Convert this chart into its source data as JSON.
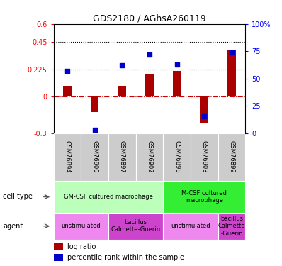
{
  "title": "GDS2180 / AGhsA260119",
  "samples": [
    "GSM76894",
    "GSM76900",
    "GSM76897",
    "GSM76902",
    "GSM76898",
    "GSM76903",
    "GSM76899"
  ],
  "log_ratio": [
    0.09,
    -0.13,
    0.09,
    0.19,
    0.21,
    -0.22,
    0.38
  ],
  "percentile_rank": [
    57,
    3,
    62,
    72,
    63,
    15,
    74
  ],
  "ylim_left": [
    -0.3,
    0.6
  ],
  "ylim_right": [
    0,
    100
  ],
  "yticks_left": [
    -0.3,
    0,
    0.225,
    0.45,
    0.6
  ],
  "ytick_labels_left": [
    "-0.3",
    "0",
    "0.225",
    "0.45",
    "0.6"
  ],
  "yticks_right": [
    0,
    25,
    50,
    75,
    100
  ],
  "ytick_labels_right": [
    "0",
    "25",
    "50",
    "75",
    "100%"
  ],
  "hlines": [
    0.225,
    0.45
  ],
  "bar_color": "#aa0000",
  "dot_color": "#0000cc",
  "cell_type_groups": [
    {
      "label": "GM-CSF cultured macrophage",
      "start": 0,
      "end": 4,
      "color": "#bbffbb"
    },
    {
      "label": "M-CSF cultured\nmacrophage",
      "start": 4,
      "end": 7,
      "color": "#33ee33"
    }
  ],
  "agent_groups": [
    {
      "label": "unstimulated",
      "start": 0,
      "end": 2,
      "color": "#ee88ee"
    },
    {
      "label": "bacillus\nCalmette-Guerin",
      "start": 2,
      "end": 4,
      "color": "#cc44cc"
    },
    {
      "label": "unstimulated",
      "start": 4,
      "end": 6,
      "color": "#ee88ee"
    },
    {
      "label": "bacillus\nCalmette\n-Guerin",
      "start": 6,
      "end": 7,
      "color": "#cc44cc"
    }
  ],
  "legend_items": [
    {
      "label": "log ratio",
      "color": "#aa0000"
    },
    {
      "label": "percentile rank within the sample",
      "color": "#0000cc"
    }
  ],
  "left_labels": [
    "cell type",
    "agent"
  ],
  "bg_color": "#cccccc",
  "bar_width": 0.3
}
